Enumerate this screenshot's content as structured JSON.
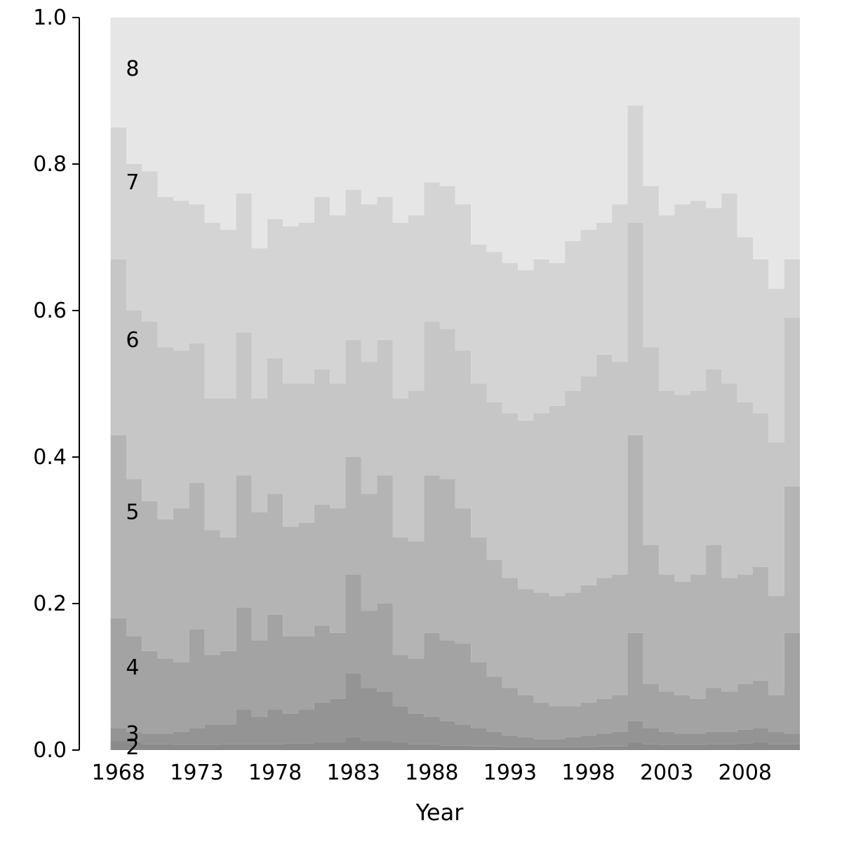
{
  "chart": {
    "xlabel": "Year",
    "x_tick_labels": [
      "1968",
      "1973",
      "1978",
      "1983",
      "1988",
      "1993",
      "1998",
      "2003",
      "2008"
    ],
    "x_tick_years": [
      1968,
      1973,
      1978,
      1983,
      1988,
      1993,
      1998,
      2003,
      2008
    ],
    "y_tick_labels": [
      "0.0",
      "0.2",
      "0.4",
      "0.6",
      "0.8",
      "1.0"
    ],
    "y_tick_values": [
      0.0,
      0.2,
      0.4,
      0.6,
      0.8,
      1.0
    ]
  },
  "chart_data": {
    "type": "area",
    "subtype": "stacked-proportion-bars",
    "title": "",
    "xlabel": "Year",
    "ylabel": "",
    "xlim": [
      1965.5,
      2011.5
    ],
    "ylim": [
      0,
      1
    ],
    "grid": false,
    "legend": "in-plot numeric region labels",
    "values_semantics": "cumulative_top = upper boundary (stacked proportion, 0-1) of each region per year; region height = cumulative_top minus previous region's cumulative_top",
    "years": [
      1968,
      1969,
      1970,
      1971,
      1972,
      1973,
      1974,
      1975,
      1976,
      1977,
      1978,
      1979,
      1980,
      1981,
      1982,
      1983,
      1984,
      1985,
      1986,
      1987,
      1988,
      1989,
      1990,
      1991,
      1992,
      1993,
      1994,
      1995,
      1996,
      1997,
      1998,
      1999,
      2000,
      2001,
      2002,
      2003,
      2004,
      2005,
      2006,
      2007,
      2008,
      2009,
      2010,
      2011
    ],
    "regions": [
      {
        "name": "2",
        "color": "#8a8a8a",
        "cumulative_top": [
          0.012,
          0.01,
          0.008,
          0.008,
          0.007,
          0.007,
          0.007,
          0.008,
          0.008,
          0.008,
          0.008,
          0.009,
          0.009,
          0.01,
          0.01,
          0.018,
          0.012,
          0.012,
          0.01,
          0.008,
          0.008,
          0.006,
          0.006,
          0.005,
          0.005,
          0.004,
          0.004,
          0.004,
          0.004,
          0.004,
          0.004,
          0.005,
          0.005,
          0.01,
          0.008,
          0.007,
          0.007,
          0.007,
          0.008,
          0.008,
          0.009,
          0.01,
          0.008,
          0.008
        ]
      },
      {
        "name": "3",
        "color": "#949494",
        "cumulative_top": [
          0.03,
          0.025,
          0.022,
          0.022,
          0.025,
          0.03,
          0.035,
          0.035,
          0.055,
          0.045,
          0.055,
          0.05,
          0.055,
          0.065,
          0.07,
          0.105,
          0.085,
          0.08,
          0.06,
          0.05,
          0.045,
          0.04,
          0.035,
          0.03,
          0.025,
          0.02,
          0.018,
          0.015,
          0.015,
          0.018,
          0.02,
          0.022,
          0.025,
          0.04,
          0.03,
          0.025,
          0.022,
          0.022,
          0.025,
          0.025,
          0.028,
          0.03,
          0.025,
          0.022
        ]
      },
      {
        "name": "4",
        "color": "#a3a3a3",
        "cumulative_top": [
          0.18,
          0.155,
          0.135,
          0.125,
          0.12,
          0.165,
          0.13,
          0.135,
          0.195,
          0.15,
          0.185,
          0.155,
          0.155,
          0.17,
          0.16,
          0.24,
          0.19,
          0.2,
          0.13,
          0.125,
          0.16,
          0.15,
          0.145,
          0.12,
          0.1,
          0.085,
          0.075,
          0.065,
          0.06,
          0.06,
          0.065,
          0.07,
          0.075,
          0.16,
          0.09,
          0.08,
          0.075,
          0.07,
          0.085,
          0.08,
          0.09,
          0.095,
          0.075,
          0.16
        ]
      },
      {
        "name": "5",
        "color": "#b4b4b4",
        "cumulative_top": [
          0.43,
          0.37,
          0.34,
          0.315,
          0.33,
          0.365,
          0.3,
          0.29,
          0.375,
          0.325,
          0.35,
          0.305,
          0.31,
          0.335,
          0.33,
          0.4,
          0.35,
          0.375,
          0.29,
          0.285,
          0.375,
          0.37,
          0.33,
          0.29,
          0.26,
          0.235,
          0.22,
          0.215,
          0.21,
          0.215,
          0.225,
          0.235,
          0.24,
          0.43,
          0.28,
          0.24,
          0.23,
          0.24,
          0.28,
          0.235,
          0.24,
          0.25,
          0.21,
          0.36
        ]
      },
      {
        "name": "6",
        "color": "#c6c6c6",
        "cumulative_top": [
          0.67,
          0.6,
          0.585,
          0.55,
          0.545,
          0.555,
          0.48,
          0.48,
          0.57,
          0.48,
          0.535,
          0.5,
          0.5,
          0.52,
          0.5,
          0.56,
          0.53,
          0.56,
          0.48,
          0.49,
          0.585,
          0.575,
          0.545,
          0.5,
          0.475,
          0.46,
          0.45,
          0.46,
          0.47,
          0.49,
          0.51,
          0.54,
          0.53,
          0.72,
          0.55,
          0.49,
          0.485,
          0.49,
          0.52,
          0.5,
          0.475,
          0.46,
          0.42,
          0.59
        ]
      },
      {
        "name": "7",
        "color": "#d4d4d4",
        "cumulative_top": [
          0.85,
          0.8,
          0.79,
          0.755,
          0.75,
          0.745,
          0.72,
          0.71,
          0.76,
          0.685,
          0.725,
          0.715,
          0.72,
          0.755,
          0.73,
          0.765,
          0.745,
          0.755,
          0.72,
          0.73,
          0.775,
          0.77,
          0.745,
          0.69,
          0.68,
          0.665,
          0.655,
          0.67,
          0.665,
          0.695,
          0.71,
          0.72,
          0.745,
          0.88,
          0.77,
          0.73,
          0.745,
          0.75,
          0.74,
          0.76,
          0.7,
          0.67,
          0.63,
          0.67
        ]
      },
      {
        "name": "8",
        "color": "#e6e6e6",
        "cumulative_top": 1.0
      }
    ],
    "region_labels": [
      {
        "text": "8",
        "year": 1968.9,
        "value": 0.93
      },
      {
        "text": "7",
        "year": 1968.9,
        "value": 0.775
      },
      {
        "text": "6",
        "year": 1968.9,
        "value": 0.56
      },
      {
        "text": "5",
        "year": 1968.9,
        "value": 0.325
      },
      {
        "text": "4",
        "year": 1968.9,
        "value": 0.113
      },
      {
        "text": "3",
        "year": 1968.9,
        "value": 0.022
      },
      {
        "text": "2",
        "year": 1968.9,
        "value": 0.004
      }
    ]
  }
}
